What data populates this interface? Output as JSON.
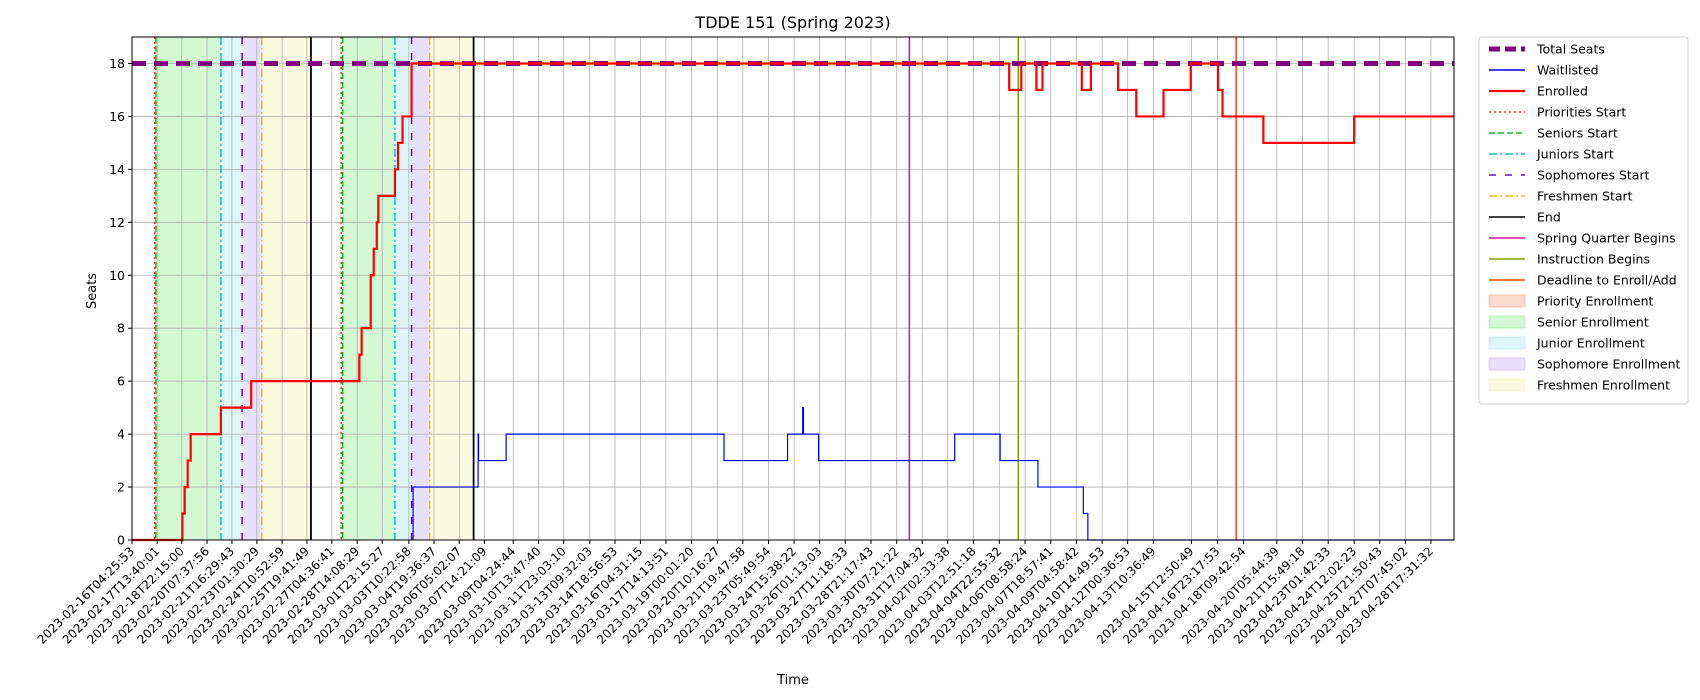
{
  "chart_data": {
    "type": "line",
    "title": "TDDE 151 (Spring 2023)",
    "xlabel": "Time",
    "ylabel": "Seats",
    "ylim": [
      0,
      19
    ],
    "yticks": [
      0,
      2,
      4,
      6,
      8,
      10,
      12,
      14,
      16,
      18
    ],
    "grid": true,
    "legend_position": "outside right",
    "xlim": [
      "2023-02-16T04:25:53",
      "2023-04-30T00:00:00"
    ],
    "xtick_labels": [
      "2023-02-16T04:25:53",
      "2023-02-17T13:40:01",
      "2023-02-18T22:15:00",
      "2023-02-20T07:37:56",
      "2023-02-21T16:29:43",
      "2023-02-23T01:30:29",
      "2023-02-24T10:52:59",
      "2023-02-25T19:41:49",
      "2023-02-27T04:36:41",
      "2023-02-28T14:08:29",
      "2023-03-01T23:15:27",
      "2023-03-03T10:22:58",
      "2023-03-04T19:36:37",
      "2023-03-06T05:02:07",
      "2023-03-07T14:21:09",
      "2023-03-09T04:24:44",
      "2023-03-10T13:47:40",
      "2023-03-11T23:03:10",
      "2023-03-13T09:32:03",
      "2023-03-14T18:56:53",
      "2023-03-16T04:31:15",
      "2023-03-17T14:13:51",
      "2023-03-19T00:01:20",
      "2023-03-20T10:16:27",
      "2023-03-21T19:47:58",
      "2023-03-23T05:49:54",
      "2023-03-24T15:38:22",
      "2023-03-26T01:13:03",
      "2023-03-27T11:18:33",
      "2023-03-28T21:17:43",
      "2023-03-30T07:21:22",
      "2023-03-31T17:04:32",
      "2023-04-02T02:33:38",
      "2023-04-03T12:51:18",
      "2023-04-04T22:55:32",
      "2023-04-06T08:58:24",
      "2023-04-07T18:57:41",
      "2023-04-09T04:58:42",
      "2023-04-10T14:49:53",
      "2023-04-12T00:36:53",
      "2023-04-13T10:36:49",
      "2023-04-15T12:50:49",
      "2023-04-16T23:17:53",
      "2023-04-18T09:42:54",
      "2023-04-20T05:44:39",
      "2023-04-21T15:49:18",
      "2023-04-23T01:42:33",
      "2023-04-24T12:02:23",
      "2023-04-25T21:50:43",
      "2023-04-27T07:45:02",
      "2023-04-28T17:31:32"
    ],
    "shaded_periods": [
      {
        "name": "Priority Enrollment",
        "color": "#f4a582",
        "start": "2023-02-17T10:30:00",
        "end": "2023-02-17T12:00:00"
      },
      {
        "name": "Senior Enrollment",
        "color": "#90ee90",
        "start": "2023-02-17T12:00:00",
        "end": "2023-02-21T02:00:00"
      },
      {
        "name": "Junior Enrollment",
        "color": "#aee8f0",
        "start": "2023-02-21T02:00:00",
        "end": "2023-02-22T06:00:00"
      },
      {
        "name": "Sophomore Enrollment",
        "color": "#c7b3f0",
        "start": "2023-02-22T06:00:00",
        "end": "2023-02-23T08:00:00"
      },
      {
        "name": "Freshmen Enrollment",
        "color": "#f2f2b3",
        "start": "2023-02-23T08:00:00",
        "end": "2023-02-26T01:00:00"
      },
      {
        "name": "Priority Enrollment",
        "color": "#f4a582",
        "start": "2023-02-27T17:00:00",
        "end": "2023-02-27T19:00:00"
      },
      {
        "name": "Senior Enrollment",
        "color": "#90ee90",
        "start": "2023-02-27T19:00:00",
        "end": "2023-03-02T16:00:00"
      },
      {
        "name": "Junior Enrollment",
        "color": "#aee8f0",
        "start": "2023-03-02T16:00:00",
        "end": "2023-03-03T14:00:00"
      },
      {
        "name": "Sophomore Enrollment",
        "color": "#c7b3f0",
        "start": "2023-03-03T14:00:00",
        "end": "2023-03-04T14:00:00"
      },
      {
        "name": "Freshmen Enrollment",
        "color": "#f2f2b3",
        "start": "2023-03-04T14:00:00",
        "end": "2023-03-07T00:00:00"
      }
    ],
    "event_lines": [
      {
        "name": "Priorities Start",
        "color": "#ff2a1a",
        "dash": "dotted",
        "dates": [
          "2023-02-17T10:30:00",
          "2023-02-27T17:00:00"
        ]
      },
      {
        "name": "Seniors Start",
        "color": "#22bb22",
        "dash": "dashed",
        "dates": [
          "2023-02-17T12:00:00",
          "2023-02-27T19:00:00"
        ]
      },
      {
        "name": "Juniors Start",
        "color": "#17becf",
        "dash": "dashdot",
        "dates": [
          "2023-02-21T02:00:00",
          "2023-03-02T16:00:00"
        ]
      },
      {
        "name": "Sophomores Start",
        "color": "#6a0dad",
        "dash": "loose",
        "dates": [
          "2023-02-22T06:00:00",
          "2023-03-03T14:00:00"
        ]
      },
      {
        "name": "Freshmen Start",
        "color": "#e6c619",
        "dash": "dashdot",
        "dates": [
          "2023-02-23T08:00:00",
          "2023-03-04T14:00:00"
        ]
      },
      {
        "name": "End",
        "color": "#000000",
        "dash": "solid",
        "dates": [
          "2023-02-26T01:00:00",
          "2023-03-07T00:00:00"
        ]
      },
      {
        "name": "Spring Quarter Begins",
        "color": "#d6139f",
        "dash": "solid",
        "dates": [
          "2023-03-31T00:00:00"
        ]
      },
      {
        "name": "Instruction Begins",
        "color": "#7fa300",
        "dash": "solid",
        "dates": [
          "2023-04-06T00:00:00"
        ]
      },
      {
        "name": "Deadline to Enroll/Add",
        "color": "#e0481f",
        "dash": "solid",
        "dates": [
          "2023-04-18T00:00:00"
        ]
      }
    ],
    "series": [
      {
        "name": "Total Seats",
        "color": "#800080",
        "style": "thick-dashed",
        "points": [
          [
            "2023-02-16T04:25:53",
            18
          ],
          [
            "2023-04-30T00:00:00",
            18
          ]
        ]
      },
      {
        "name": "Waitlisted",
        "color": "#0000ff",
        "style": "step",
        "points": [
          [
            "2023-03-03T16:00:00",
            0
          ],
          [
            "2023-03-03T16:00:00",
            2
          ],
          [
            "2023-03-07T06:00:00",
            2
          ],
          [
            "2023-03-07T06:00:00",
            4
          ],
          [
            "2023-03-07T06:30:00",
            4
          ],
          [
            "2023-03-07T06:30:00",
            3
          ],
          [
            "2023-03-08T19:00:00",
            3
          ],
          [
            "2023-03-08T19:00:00",
            4
          ],
          [
            "2023-03-20T19:00:00",
            4
          ],
          [
            "2023-03-20T19:00:00",
            3
          ],
          [
            "2023-03-24T07:00:00",
            3
          ],
          [
            "2023-03-24T07:00:00",
            4
          ],
          [
            "2023-03-25T03:00:00",
            4
          ],
          [
            "2023-03-25T03:00:00",
            5
          ],
          [
            "2023-03-25T04:00:00",
            5
          ],
          [
            "2023-03-25T04:00:00",
            4
          ],
          [
            "2023-03-26T00:00:00",
            4
          ],
          [
            "2023-03-26T00:00:00",
            3
          ],
          [
            "2023-04-02T12:00:00",
            3
          ],
          [
            "2023-04-02T12:00:00",
            4
          ],
          [
            "2023-04-05T00:00:00",
            4
          ],
          [
            "2023-04-05T00:00:00",
            3
          ],
          [
            "2023-04-07T02:00:00",
            3
          ],
          [
            "2023-04-07T02:00:00",
            2
          ],
          [
            "2023-04-09T14:00:00",
            2
          ],
          [
            "2023-04-09T14:00:00",
            1
          ],
          [
            "2023-04-09T20:00:00",
            1
          ],
          [
            "2023-04-09T20:00:00",
            0
          ],
          [
            "2023-04-30T00:00:00",
            0
          ]
        ]
      },
      {
        "name": "Enrolled",
        "color": "#ff0000",
        "style": "step",
        "points": [
          [
            "2023-02-16T04:25:53",
            0
          ],
          [
            "2023-02-18T23:00:00",
            0
          ],
          [
            "2023-02-18T23:00:00",
            1
          ],
          [
            "2023-02-19T02:00:00",
            1
          ],
          [
            "2023-02-19T02:00:00",
            2
          ],
          [
            "2023-02-19T06:00:00",
            2
          ],
          [
            "2023-02-19T06:00:00",
            3
          ],
          [
            "2023-02-19T10:00:00",
            3
          ],
          [
            "2023-02-19T10:00:00",
            4
          ],
          [
            "2023-02-21T02:00:00",
            4
          ],
          [
            "2023-02-21T02:00:00",
            5
          ],
          [
            "2023-02-22T18:00:00",
            5
          ],
          [
            "2023-02-22T18:00:00",
            6
          ],
          [
            "2023-02-28T17:00:00",
            6
          ],
          [
            "2023-02-28T17:00:00",
            7
          ],
          [
            "2023-02-28T20:00:00",
            7
          ],
          [
            "2023-02-28T20:00:00",
            8
          ],
          [
            "2023-03-01T08:00:00",
            8
          ],
          [
            "2023-03-01T08:00:00",
            10
          ],
          [
            "2023-03-01T12:00:00",
            10
          ],
          [
            "2023-03-01T12:00:00",
            11
          ],
          [
            "2023-03-01T16:00:00",
            11
          ],
          [
            "2023-03-01T16:00:00",
            12
          ],
          [
            "2023-03-01T18:00:00",
            12
          ],
          [
            "2023-03-01T18:00:00",
            13
          ],
          [
            "2023-03-02T16:00:00",
            13
          ],
          [
            "2023-03-02T16:00:00",
            14
          ],
          [
            "2023-03-02T20:00:00",
            14
          ],
          [
            "2023-03-02T20:00:00",
            15
          ],
          [
            "2023-03-03T02:00:00",
            15
          ],
          [
            "2023-03-03T02:00:00",
            16
          ],
          [
            "2023-03-03T14:00:00",
            16
          ],
          [
            "2023-03-03T14:00:00",
            18
          ],
          [
            "2023-04-05T12:00:00",
            18
          ],
          [
            "2023-04-05T12:00:00",
            17
          ],
          [
            "2023-04-06T04:00:00",
            17
          ],
          [
            "2023-04-06T04:00:00",
            18
          ],
          [
            "2023-04-07T00:00:00",
            18
          ],
          [
            "2023-04-07T00:00:00",
            17
          ],
          [
            "2023-04-07T08:00:00",
            17
          ],
          [
            "2023-04-07T08:00:00",
            18
          ],
          [
            "2023-04-09T12:00:00",
            18
          ],
          [
            "2023-04-09T12:00:00",
            17
          ],
          [
            "2023-04-10T00:00:00",
            17
          ],
          [
            "2023-04-10T00:00:00",
            18
          ],
          [
            "2023-04-11T12:00:00",
            18
          ],
          [
            "2023-04-11T12:00:00",
            17
          ],
          [
            "2023-04-12T12:00:00",
            17
          ],
          [
            "2023-04-12T12:00:00",
            16
          ],
          [
            "2023-04-14T00:00:00",
            16
          ],
          [
            "2023-04-14T00:00:00",
            17
          ],
          [
            "2023-04-15T12:00:00",
            17
          ],
          [
            "2023-04-15T12:00:00",
            18
          ],
          [
            "2023-04-17T00:00:00",
            18
          ],
          [
            "2023-04-17T00:00:00",
            17
          ],
          [
            "2023-04-17T06:00:00",
            17
          ],
          [
            "2023-04-17T06:00:00",
            16
          ],
          [
            "2023-04-19T12:00:00",
            16
          ],
          [
            "2023-04-19T12:00:00",
            15
          ],
          [
            "2023-04-24T12:00:00",
            15
          ],
          [
            "2023-04-24T12:00:00",
            16
          ],
          [
            "2023-04-30T00:00:00",
            16
          ],
          [
            "2023-04-30T00:00:00",
            16
          ]
        ]
      }
    ],
    "legend": [
      {
        "label": "Total Seats",
        "kind": "line",
        "color": "#800080",
        "dash": "thick-dashed"
      },
      {
        "label": "Waitlisted",
        "kind": "line",
        "color": "#0000ff",
        "dash": "solid"
      },
      {
        "label": "Enrolled",
        "kind": "line",
        "color": "#ff0000",
        "dash": "solid-thick"
      },
      {
        "label": "Priorities Start",
        "kind": "line",
        "color": "#ff2a1a",
        "dash": "dotted"
      },
      {
        "label": "Seniors Start",
        "kind": "line",
        "color": "#22bb22",
        "dash": "dashed"
      },
      {
        "label": "Juniors Start",
        "kind": "line",
        "color": "#17becf",
        "dash": "dashdot"
      },
      {
        "label": "Sophomores Start",
        "kind": "line",
        "color": "#6a0dad",
        "dash": "loose"
      },
      {
        "label": "Freshmen Start",
        "kind": "line",
        "color": "#e6c619",
        "dash": "dashdot"
      },
      {
        "label": "End",
        "kind": "line",
        "color": "#000000",
        "dash": "solid"
      },
      {
        "label": "Spring Quarter Begins",
        "kind": "line",
        "color": "#d6139f",
        "dash": "solid"
      },
      {
        "label": "Instruction Begins",
        "kind": "line",
        "color": "#7fa300",
        "dash": "solid"
      },
      {
        "label": "Deadline to Enroll/Add",
        "kind": "line",
        "color": "#e0481f",
        "dash": "solid"
      },
      {
        "label": "Priority Enrollment",
        "kind": "patch",
        "color": "#f4a582"
      },
      {
        "label": "Senior Enrollment",
        "kind": "patch",
        "color": "#90ee90"
      },
      {
        "label": "Junior Enrollment",
        "kind": "patch",
        "color": "#aee8f0"
      },
      {
        "label": "Sophomore Enrollment",
        "kind": "patch",
        "color": "#c7b3f0"
      },
      {
        "label": "Freshmen Enrollment",
        "kind": "patch",
        "color": "#f2f2b3"
      }
    ]
  }
}
